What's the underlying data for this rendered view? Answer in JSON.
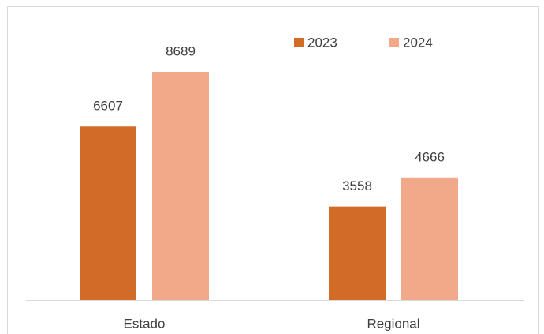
{
  "chart_data": {
    "type": "bar",
    "categories": [
      "Estado",
      "Regional"
    ],
    "series": [
      {
        "name": "2023",
        "color": "#d26b28",
        "values": [
          6607,
          3558
        ]
      },
      {
        "name": "2024",
        "color": "#f2a98a",
        "values": [
          8689,
          4666
        ]
      }
    ],
    "legend": "top-right"
  }
}
